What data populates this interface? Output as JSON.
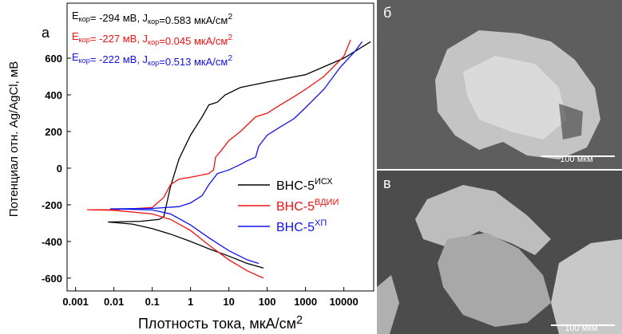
{
  "chart_data": {
    "type": "line",
    "panel_label": "а",
    "xlabel": [
      {
        "t": "Плотность тока, мкА/см"
      },
      {
        "sup": "2"
      }
    ],
    "ylabel": "Потенциал отн. Ag/AgCl, мВ",
    "xscale": "log",
    "xlim": [
      0.0006,
      60000
    ],
    "xticks": [
      0.001,
      0.01,
      0.1,
      1,
      10,
      100,
      1000,
      10000
    ],
    "ylim": [
      -670,
      900
    ],
    "yticks": [
      -600,
      -400,
      -200,
      0,
      200,
      400,
      600
    ],
    "legend": "right",
    "annotations": [
      {
        "color": "#000000",
        "parts": [
          {
            "t": "E"
          },
          {
            "sub": "кор"
          },
          {
            "t": "= -294 мВ, J"
          },
          {
            "sub": "кор"
          },
          {
            "t": "=0.583 мкА/см"
          },
          {
            "sup": "2"
          }
        ]
      },
      {
        "color": "#ee1111",
        "parts": [
          {
            "t": "E"
          },
          {
            "sub": "кор"
          },
          {
            "t": "= -227 мВ, J"
          },
          {
            "sub": "кор"
          },
          {
            "t": "=0.045 мкА/см"
          },
          {
            "sup": "2"
          }
        ]
      },
      {
        "color": "#1111ee",
        "parts": [
          {
            "t": "E"
          },
          {
            "sub": "кор"
          },
          {
            "t": "= -222 мВ, J"
          },
          {
            "sub": "кор"
          },
          {
            "t": "=0.513 мкА/см"
          },
          {
            "sup": "2"
          }
        ]
      }
    ],
    "series": [
      {
        "name": "ВНС-5",
        "name_sup": "ИСХ",
        "color": "#000000",
        "x": [
          80,
          30,
          10,
          3,
          1,
          0.3,
          0.1,
          0.03,
          0.007,
          0.05,
          0.15,
          0.2,
          0.3,
          0.5,
          1,
          2,
          3,
          5,
          8,
          20,
          100,
          1000,
          10000,
          50000
        ],
        "values": [
          -545,
          -520,
          -480,
          -440,
          -400,
          -360,
          -330,
          -305,
          -294,
          -290,
          -280,
          -265,
          -100,
          50,
          180,
          280,
          345,
          360,
          400,
          440,
          470,
          510,
          600,
          690
        ]
      },
      {
        "name": "ВНС-5",
        "name_sup": "ВДИИ",
        "color": "#ee1111",
        "x": [
          80,
          30,
          10,
          3,
          1,
          0.3,
          0.1,
          0.01,
          0.002,
          0.01,
          0.1,
          0.2,
          0.3,
          0.5,
          1,
          3,
          4,
          4.5,
          6,
          10,
          20,
          50,
          100,
          200,
          500,
          1000,
          3000,
          10000,
          15000
        ],
        "values": [
          -600,
          -560,
          -500,
          -420,
          -340,
          -280,
          -250,
          -230,
          -227,
          -227,
          -215,
          -160,
          -90,
          -60,
          -50,
          -30,
          -10,
          60,
          90,
          150,
          200,
          280,
          300,
          340,
          390,
          430,
          500,
          610,
          700
        ]
      },
      {
        "name": "ВНС-5",
        "name_sup": "ХП",
        "color": "#1111ee",
        "x": [
          60,
          30,
          10,
          3,
          1,
          0.3,
          0.1,
          0.008,
          0.1,
          0.5,
          1,
          2,
          3,
          5,
          10,
          20,
          30,
          50,
          60,
          100,
          200,
          500,
          1000,
          3000,
          8000,
          20000,
          30000
        ],
        "values": [
          -520,
          -500,
          -450,
          -380,
          -310,
          -250,
          -228,
          -222,
          -220,
          -210,
          -190,
          -150,
          -90,
          -30,
          -10,
          20,
          40,
          60,
          120,
          180,
          220,
          270,
          330,
          430,
          550,
          640,
          690
        ]
      }
    ]
  },
  "images": [
    {
      "label": "б",
      "scale_bar": "100 мкм"
    },
    {
      "label": "в",
      "scale_bar": "100 мкм"
    }
  ]
}
